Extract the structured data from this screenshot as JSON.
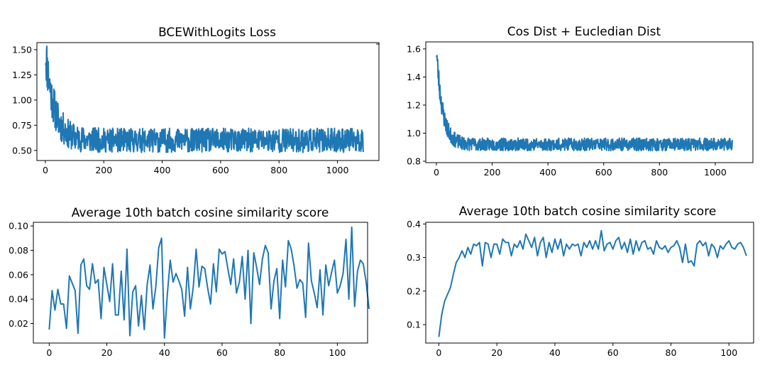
{
  "chart_data": [
    {
      "type": "line",
      "title": "BCEWithLogits Loss",
      "xlabel": "",
      "ylabel": "",
      "xlim": [
        -29,
        1142
      ],
      "ylim": [
        0.4,
        1.57
      ],
      "xticks": [
        0,
        200,
        400,
        600,
        800,
        1000
      ],
      "yticks": [
        0.5,
        0.75,
        1.0,
        1.25,
        1.5
      ],
      "ytick_labels": [
        "0.50",
        "0.75",
        "1.00",
        "1.25",
        "1.50"
      ],
      "grid": false,
      "series": [
        {
          "color": "#1f77b4",
          "gen": {
            "n": 1090,
            "start": 1.5,
            "decay": 0.9,
            "tau": 30,
            "floor": 0.6,
            "noise": 0.12,
            "seed": 11
          }
        }
      ]
    },
    {
      "type": "line",
      "title": "Cos Dist + Eucledian Dist",
      "xlabel": "",
      "ylabel": "",
      "xlim": [
        -38,
        1135
      ],
      "ylim": [
        0.79,
        1.65
      ],
      "xticks": [
        0,
        200,
        400,
        600,
        800,
        1000
      ],
      "yticks": [
        0.8,
        1.0,
        1.2,
        1.4,
        1.6
      ],
      "ytick_labels": [
        "0.8",
        "1.0",
        "1.2",
        "1.4",
        "1.6"
      ],
      "grid": false,
      "series": [
        {
          "color": "#1f77b4",
          "gen": {
            "n": 1062,
            "start": 1.6,
            "decay": 0.68,
            "tau": 22,
            "floor": 0.92,
            "noise": 0.045,
            "seed": 23
          }
        }
      ]
    },
    {
      "type": "line",
      "title": "Average 10th batch cosine similarity score",
      "xlabel": "",
      "ylabel": "",
      "xlim": [
        -5.5,
        110.5
      ],
      "ylim": [
        0.004,
        0.103
      ],
      "xticks": [
        0,
        20,
        40,
        60,
        80,
        100
      ],
      "yticks": [
        0.02,
        0.04,
        0.06,
        0.08,
        0.1
      ],
      "ytick_labels": [
        "0.02",
        "0.04",
        "0.06",
        "0.08",
        "0.10"
      ],
      "grid": false,
      "series": [
        {
          "color": "#1f77b4",
          "values": [
            0.015,
            0.047,
            0.031,
            0.048,
            0.036,
            0.036,
            0.016,
            0.059,
            0.053,
            0.047,
            0.012,
            0.068,
            0.073,
            0.051,
            0.048,
            0.069,
            0.053,
            0.056,
            0.024,
            0.066,
            0.052,
            0.038,
            0.069,
            0.027,
            0.027,
            0.063,
            0.023,
            0.081,
            0.01,
            0.046,
            0.051,
            0.018,
            0.043,
            0.015,
            0.052,
            0.068,
            0.032,
            0.05,
            0.082,
            0.09,
            0.008,
            0.044,
            0.072,
            0.054,
            0.061,
            0.055,
            0.048,
            0.026,
            0.066,
            0.032,
            0.05,
            0.081,
            0.05,
            0.067,
            0.065,
            0.049,
            0.036,
            0.069,
            0.046,
            0.081,
            0.077,
            0.079,
            0.065,
            0.052,
            0.073,
            0.045,
            0.054,
            0.075,
            0.04,
            0.08,
            0.02,
            0.078,
            0.066,
            0.052,
            0.073,
            0.084,
            0.078,
            0.032,
            0.055,
            0.065,
            0.024,
            0.072,
            0.05,
            0.088,
            0.081,
            0.067,
            0.049,
            0.056,
            0.053,
            0.025,
            0.086,
            0.055,
            0.045,
            0.033,
            0.064,
            0.027,
            0.068,
            0.051,
            0.062,
            0.072,
            0.045,
            0.051,
            0.061,
            0.089,
            0.04,
            0.099,
            0.034,
            0.063,
            0.072,
            0.069,
            0.054,
            0.032
          ]
        }
      ]
    },
    {
      "type": "line",
      "title": "Average 10th batch cosine similarity score",
      "xlabel": "",
      "ylabel": "",
      "xlim": [
        -4.5,
        108.5
      ],
      "ylim": [
        0.045,
        0.405
      ],
      "xticks": [
        0,
        20,
        40,
        60,
        80,
        100
      ],
      "yticks": [
        0.1,
        0.2,
        0.3,
        0.4
      ],
      "ytick_labels": [
        "0.1",
        "0.2",
        "0.3",
        "0.4"
      ],
      "grid": false,
      "series": [
        {
          "color": "#1f77b4",
          "values": [
            0.063,
            0.13,
            0.17,
            0.19,
            0.21,
            0.25,
            0.285,
            0.3,
            0.32,
            0.3,
            0.33,
            0.31,
            0.34,
            0.335,
            0.345,
            0.275,
            0.345,
            0.34,
            0.3,
            0.34,
            0.34,
            0.31,
            0.355,
            0.345,
            0.345,
            0.305,
            0.34,
            0.33,
            0.35,
            0.325,
            0.37,
            0.35,
            0.33,
            0.36,
            0.305,
            0.345,
            0.36,
            0.3,
            0.345,
            0.315,
            0.355,
            0.325,
            0.355,
            0.305,
            0.34,
            0.325,
            0.34,
            0.335,
            0.34,
            0.305,
            0.345,
            0.33,
            0.35,
            0.325,
            0.35,
            0.325,
            0.38,
            0.32,
            0.34,
            0.345,
            0.325,
            0.35,
            0.36,
            0.325,
            0.345,
            0.315,
            0.355,
            0.31,
            0.35,
            0.32,
            0.345,
            0.35,
            0.325,
            0.33,
            0.31,
            0.35,
            0.33,
            0.325,
            0.335,
            0.315,
            0.33,
            0.335,
            0.35,
            0.33,
            0.285,
            0.34,
            0.285,
            0.29,
            0.275,
            0.34,
            0.35,
            0.335,
            0.345,
            0.305,
            0.34,
            0.33,
            0.3,
            0.335,
            0.325,
            0.34,
            0.35,
            0.33,
            0.325,
            0.34,
            0.345,
            0.33,
            0.305
          ]
        }
      ]
    }
  ]
}
